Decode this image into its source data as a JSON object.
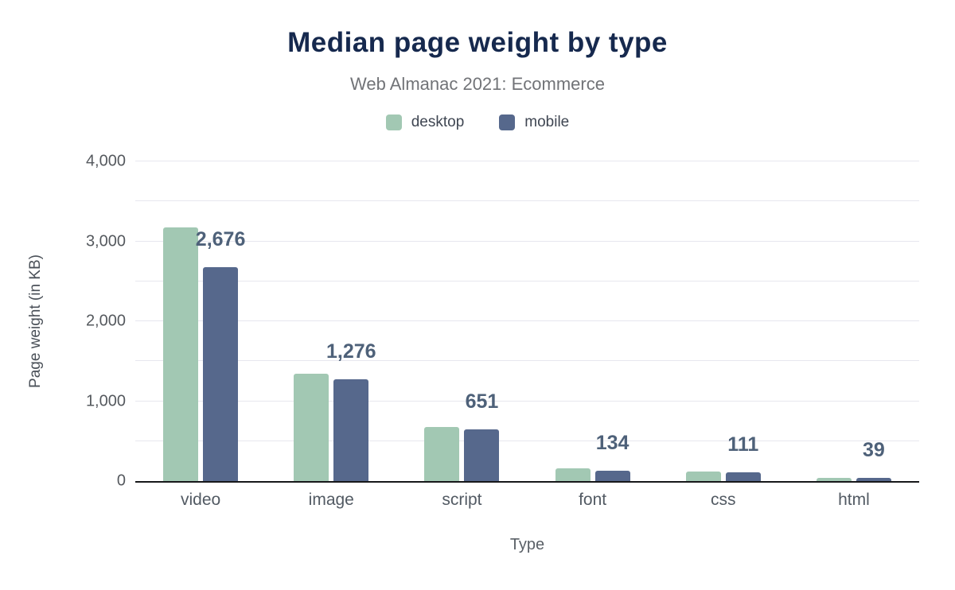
{
  "header": {
    "title": "Median page weight by type",
    "subtitle": "Web Almanac 2021: Ecommerce"
  },
  "legend": [
    {
      "label": "desktop",
      "color": "#a2c8b3"
    },
    {
      "label": "mobile",
      "color": "#56688c"
    }
  ],
  "axes": {
    "y_title": "Page weight (in KB)",
    "x_title": "Type",
    "y_tick_labels": [
      "0",
      "1,000",
      "2,000",
      "3,000",
      "4,000"
    ]
  },
  "chart_data": {
    "type": "bar",
    "title": "Median page weight by type",
    "subtitle": "Web Almanac 2021: Ecommerce",
    "categories": [
      "video",
      "image",
      "script",
      "font",
      "css",
      "html"
    ],
    "series": [
      {
        "name": "desktop",
        "color": "#a2c8b3",
        "values": [
          3170,
          1340,
          678,
          158,
          117,
          44
        ]
      },
      {
        "name": "mobile",
        "color": "#56688c",
        "values": [
          2676,
          1276,
          651,
          134,
          111,
          39
        ]
      }
    ],
    "data_labels": [
      "2,676",
      "1,276",
      "651",
      "134",
      "111",
      "39"
    ],
    "xlabel": "Type",
    "ylabel": "Page weight (in KB)",
    "ylim": [
      0,
      4000
    ],
    "grid_step": 500,
    "tick_step": 1000,
    "grid": true,
    "legend_position": "top"
  }
}
